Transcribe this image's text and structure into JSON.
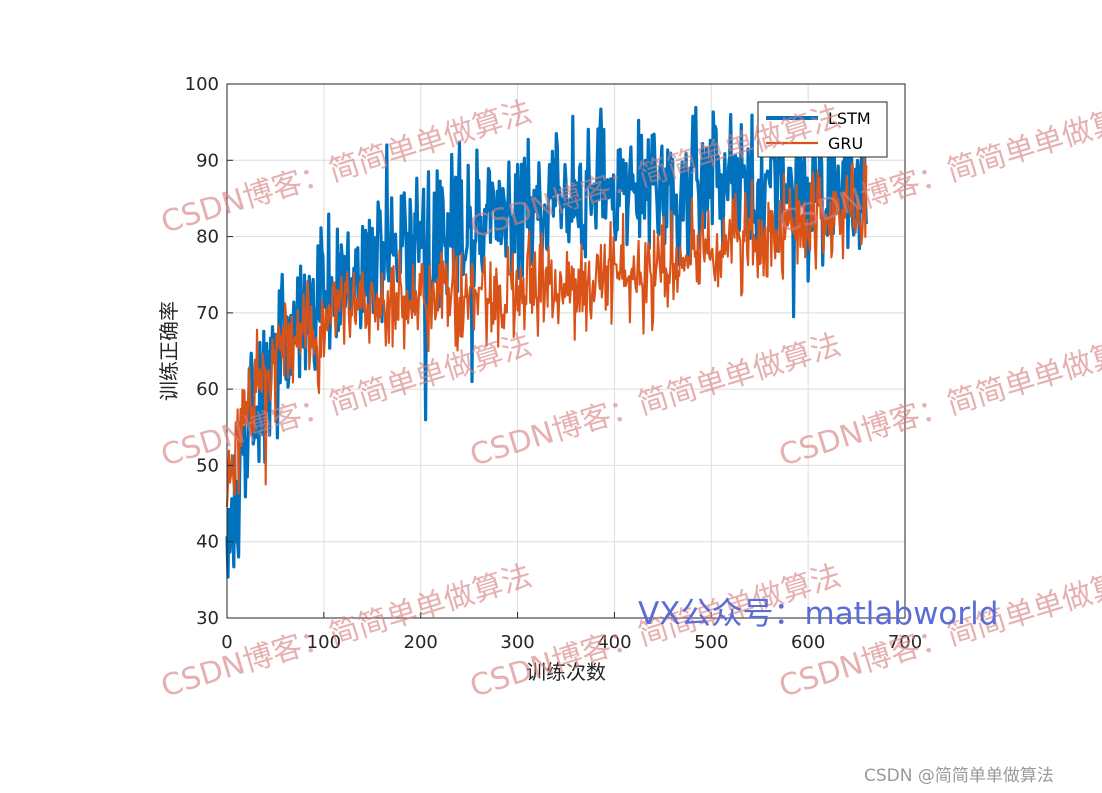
{
  "chart_data": {
    "type": "line",
    "title": "",
    "xlabel": "训练次数",
    "ylabel": "训练正确率",
    "xlim": [
      0,
      700
    ],
    "ylim": [
      30,
      100
    ],
    "xticks": [
      0,
      100,
      200,
      300,
      400,
      500,
      600,
      700
    ],
    "yticks": [
      30,
      40,
      50,
      60,
      70,
      80,
      90,
      100
    ],
    "grid": true,
    "legend_position": "top-right",
    "n_points": 661,
    "series": [
      {
        "name": "LSTM",
        "color": "#0072BD",
        "trend_points": [
          [
            0,
            40
          ],
          [
            10,
            46
          ],
          [
            25,
            56
          ],
          [
            50,
            64
          ],
          [
            75,
            69
          ],
          [
            100,
            72
          ],
          [
            150,
            77
          ],
          [
            200,
            79
          ],
          [
            250,
            82
          ],
          [
            300,
            84
          ],
          [
            350,
            85
          ],
          [
            400,
            86
          ],
          [
            450,
            86.5
          ],
          [
            500,
            87
          ],
          [
            550,
            86
          ],
          [
            600,
            86
          ],
          [
            660,
            88
          ]
        ],
        "noise_amplitude": 4.5,
        "notable_values": [
          [
            12,
            38
          ],
          [
            165,
            92
          ],
          [
            205,
            56
          ],
          [
            253,
            61
          ],
          [
            340,
            93.5
          ],
          [
            520,
            96
          ],
          [
            585,
            69.5
          ],
          [
            650,
            88
          ]
        ]
      },
      {
        "name": "GRU",
        "color": "#D95319",
        "trend_points": [
          [
            0,
            46
          ],
          [
            10,
            52
          ],
          [
            25,
            58
          ],
          [
            50,
            64
          ],
          [
            75,
            67
          ],
          [
            100,
            69
          ],
          [
            150,
            70.5
          ],
          [
            200,
            72
          ],
          [
            250,
            72.5
          ],
          [
            300,
            73
          ],
          [
            350,
            74
          ],
          [
            400,
            75
          ],
          [
            450,
            76
          ],
          [
            500,
            78
          ],
          [
            550,
            80
          ],
          [
            600,
            82
          ],
          [
            660,
            85
          ]
        ],
        "noise_amplitude": 3.2,
        "notable_values": [
          [
            40,
            47.5
          ],
          [
            95,
            59.5
          ],
          [
            640,
            88
          ],
          [
            655,
            79
          ]
        ]
      }
    ]
  },
  "watermarks": {
    "csdn": "CSDN博客：简简单单做算法",
    "vx": "VX公众号：matlabworld",
    "footer": "CSDN @简简单单做算法"
  }
}
